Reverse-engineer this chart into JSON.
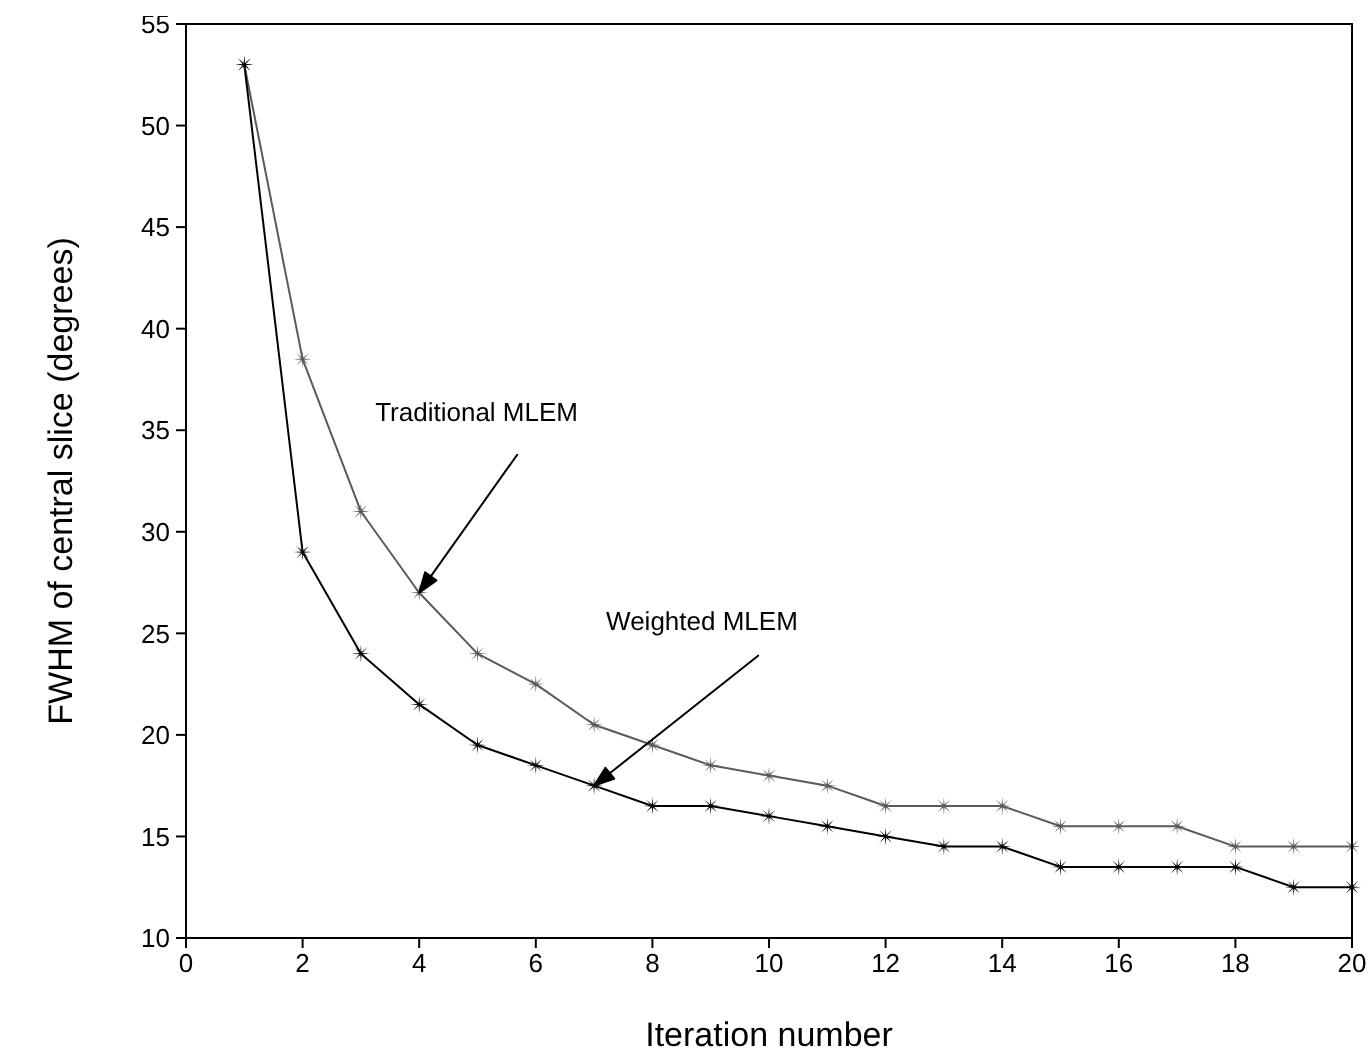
{
  "chart_data": {
    "type": "line",
    "xlabel": "Iteration number",
    "ylabel": "FWHM of central slice (degrees)",
    "x": [
      1,
      2,
      3,
      4,
      5,
      6,
      7,
      8,
      9,
      10,
      11,
      12,
      13,
      14,
      15,
      16,
      17,
      18,
      19,
      20
    ],
    "series": [
      {
        "color": "#5a5a5a",
        "values": [
          53,
          38.5,
          31,
          27,
          24,
          22.5,
          20.5,
          19.5,
          18.5,
          18,
          17.5,
          16.5,
          16.5,
          16.5,
          15.5,
          15.5,
          15.5,
          14.5,
          14.5,
          14.5
        ]
      },
      {
        "color": "#000000",
        "values": [
          53,
          29,
          24,
          21.5,
          19.5,
          18.5,
          17.5,
          16.5,
          16.5,
          16,
          15.5,
          15,
          14.5,
          14.5,
          13.5,
          13.5,
          13.5,
          13.5,
          12.5,
          12.5
        ]
      }
    ],
    "xlim": [
      0,
      20
    ],
    "xticks": [
      0,
      2,
      4,
      6,
      8,
      10,
      12,
      14,
      16,
      18,
      20
    ],
    "ylim": [
      10,
      55
    ],
    "yticks": [
      10,
      15,
      20,
      25,
      30,
      35,
      40,
      45,
      50,
      55
    ],
    "grid": false,
    "legend": false,
    "marker": "cross",
    "line_style": "solid",
    "annotations": [
      "Traditional MLEM",
      "Weighted MLEM"
    ]
  }
}
